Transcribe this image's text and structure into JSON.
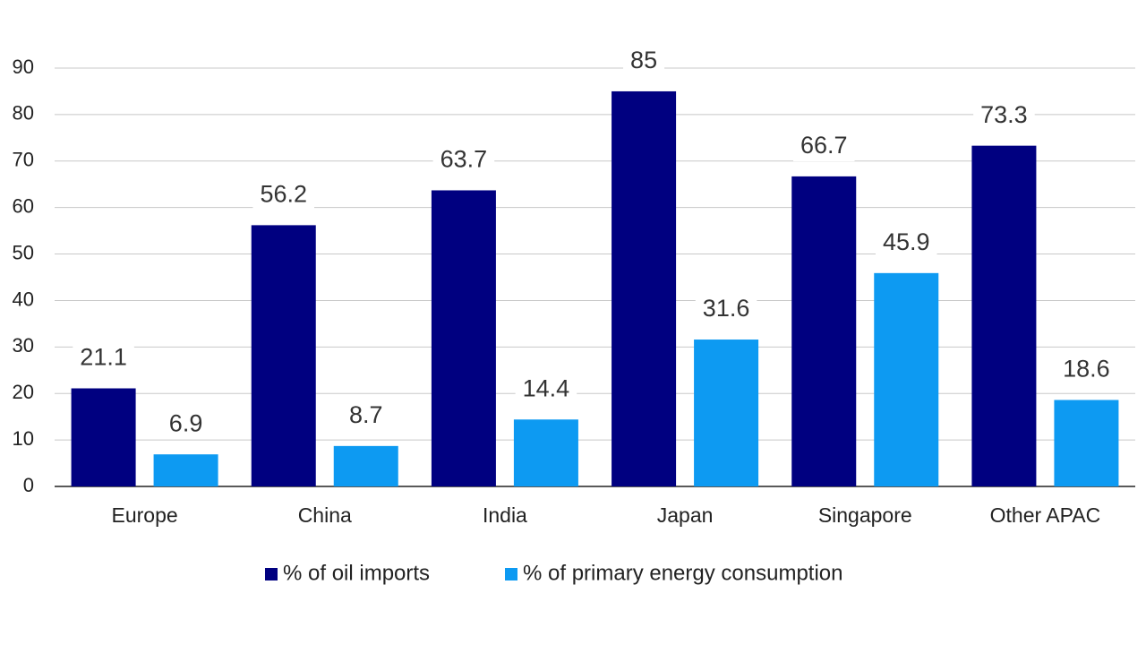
{
  "chart_data": {
    "type": "bar",
    "categories": [
      "Europe",
      "China",
      "India",
      "Japan",
      "Singapore",
      "Other APAC"
    ],
    "series": [
      {
        "name": "% of oil imports",
        "color": "#000080",
        "values": [
          21.1,
          56.2,
          63.7,
          85,
          66.7,
          73.3
        ]
      },
      {
        "name": "% of primary energy consumption",
        "color": "#0d9af2",
        "values": [
          6.9,
          8.7,
          14.4,
          31.6,
          45.9,
          18.6
        ]
      }
    ],
    "ylim": [
      0,
      90
    ],
    "yticks": [
      0,
      10,
      20,
      30,
      40,
      50,
      60,
      70,
      80,
      90
    ],
    "grid": true,
    "legend": "bottom"
  }
}
